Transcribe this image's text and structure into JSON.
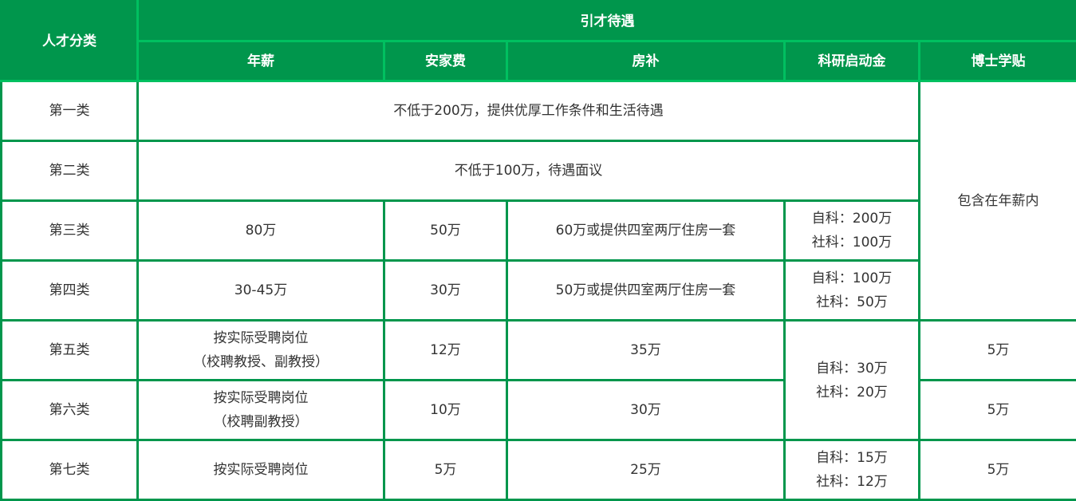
{
  "header": {
    "category": "人才分类",
    "group": "引才待遇",
    "columns": [
      "年薪",
      "安家费",
      "房补",
      "科研启动金",
      "博士学贴"
    ]
  },
  "rows": [
    {
      "category": "第一类",
      "merged": "不低于200万，提供优厚工作条件和生活待遇"
    },
    {
      "category": "第二类",
      "merged": "不低于100万，待遇面议"
    },
    {
      "category": "第三类",
      "salary": [
        "80万"
      ],
      "settle": "50万",
      "housing": "60万或提供四室两厅住房一套",
      "research": [
        "自科：200万",
        "社科：100万"
      ]
    },
    {
      "category": "第四类",
      "salary": [
        "30-45万"
      ],
      "settle": "30万",
      "housing": "50万或提供四室两厅住房一套",
      "research": [
        "自科：100万",
        "社科：50万"
      ]
    },
    {
      "category": "第五类",
      "salary": [
        "按实际受聘岗位",
        "（校聘教授、副教授）"
      ],
      "settle": "12万",
      "housing": "35万",
      "phd": "5万"
    },
    {
      "category": "第六类",
      "salary": [
        "按实际受聘岗位",
        "（校聘副教授）"
      ],
      "settle": "10万",
      "housing": "30万",
      "phd": "5万"
    },
    {
      "category": "第七类",
      "salary": [
        "按实际受聘岗位"
      ],
      "settle": "5万",
      "housing": "25万",
      "research": [
        "自科：15万",
        "社科：12万"
      ],
      "phd": "5万"
    }
  ],
  "phd_merged_1_4": "包含在年薪内",
  "research_merged_5_6": [
    "自科：30万",
    "社科：20万"
  ],
  "colors": {
    "header_bg": "#00964c",
    "header_divider": "#00c060",
    "grid": "#00964c",
    "text": "#333333"
  }
}
